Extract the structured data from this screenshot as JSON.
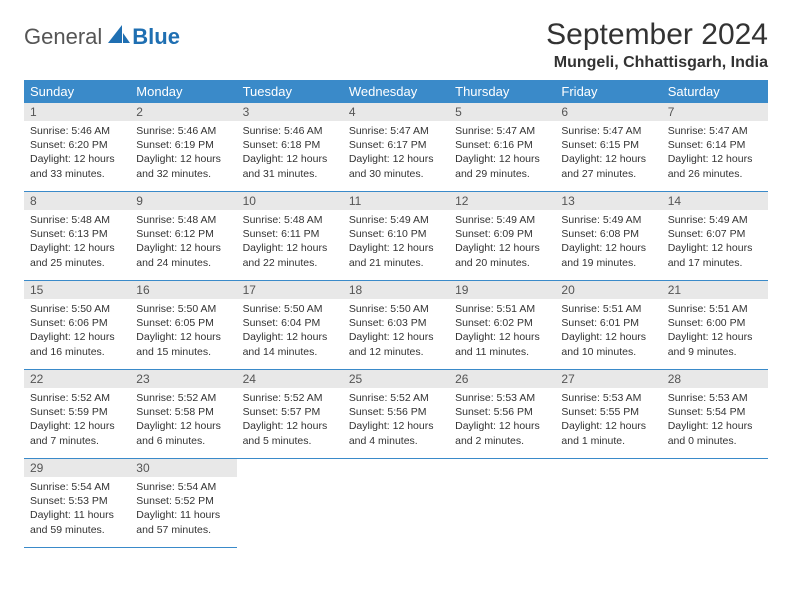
{
  "brand": {
    "word1": "General",
    "word2": "Blue",
    "word2_color": "#1f6fb2",
    "sail_color": "#1f6fb2"
  },
  "title": "September 2024",
  "location": "Mungeli, Chhattisgarh, India",
  "accent_color": "#3a8ac9",
  "day_headers": [
    "Sunday",
    "Monday",
    "Tuesday",
    "Wednesday",
    "Thursday",
    "Friday",
    "Saturday"
  ],
  "weeks": [
    [
      {
        "n": "1",
        "sr": "5:46 AM",
        "ss": "6:20 PM",
        "dl": "12 hours and 33 minutes."
      },
      {
        "n": "2",
        "sr": "5:46 AM",
        "ss": "6:19 PM",
        "dl": "12 hours and 32 minutes."
      },
      {
        "n": "3",
        "sr": "5:46 AM",
        "ss": "6:18 PM",
        "dl": "12 hours and 31 minutes."
      },
      {
        "n": "4",
        "sr": "5:47 AM",
        "ss": "6:17 PM",
        "dl": "12 hours and 30 minutes."
      },
      {
        "n": "5",
        "sr": "5:47 AM",
        "ss": "6:16 PM",
        "dl": "12 hours and 29 minutes."
      },
      {
        "n": "6",
        "sr": "5:47 AM",
        "ss": "6:15 PM",
        "dl": "12 hours and 27 minutes."
      },
      {
        "n": "7",
        "sr": "5:47 AM",
        "ss": "6:14 PM",
        "dl": "12 hours and 26 minutes."
      }
    ],
    [
      {
        "n": "8",
        "sr": "5:48 AM",
        "ss": "6:13 PM",
        "dl": "12 hours and 25 minutes."
      },
      {
        "n": "9",
        "sr": "5:48 AM",
        "ss": "6:12 PM",
        "dl": "12 hours and 24 minutes."
      },
      {
        "n": "10",
        "sr": "5:48 AM",
        "ss": "6:11 PM",
        "dl": "12 hours and 22 minutes."
      },
      {
        "n": "11",
        "sr": "5:49 AM",
        "ss": "6:10 PM",
        "dl": "12 hours and 21 minutes."
      },
      {
        "n": "12",
        "sr": "5:49 AM",
        "ss": "6:09 PM",
        "dl": "12 hours and 20 minutes."
      },
      {
        "n": "13",
        "sr": "5:49 AM",
        "ss": "6:08 PM",
        "dl": "12 hours and 19 minutes."
      },
      {
        "n": "14",
        "sr": "5:49 AM",
        "ss": "6:07 PM",
        "dl": "12 hours and 17 minutes."
      }
    ],
    [
      {
        "n": "15",
        "sr": "5:50 AM",
        "ss": "6:06 PM",
        "dl": "12 hours and 16 minutes."
      },
      {
        "n": "16",
        "sr": "5:50 AM",
        "ss": "6:05 PM",
        "dl": "12 hours and 15 minutes."
      },
      {
        "n": "17",
        "sr": "5:50 AM",
        "ss": "6:04 PM",
        "dl": "12 hours and 14 minutes."
      },
      {
        "n": "18",
        "sr": "5:50 AM",
        "ss": "6:03 PM",
        "dl": "12 hours and 12 minutes."
      },
      {
        "n": "19",
        "sr": "5:51 AM",
        "ss": "6:02 PM",
        "dl": "12 hours and 11 minutes."
      },
      {
        "n": "20",
        "sr": "5:51 AM",
        "ss": "6:01 PM",
        "dl": "12 hours and 10 minutes."
      },
      {
        "n": "21",
        "sr": "5:51 AM",
        "ss": "6:00 PM",
        "dl": "12 hours and 9 minutes."
      }
    ],
    [
      {
        "n": "22",
        "sr": "5:52 AM",
        "ss": "5:59 PM",
        "dl": "12 hours and 7 minutes."
      },
      {
        "n": "23",
        "sr": "5:52 AM",
        "ss": "5:58 PM",
        "dl": "12 hours and 6 minutes."
      },
      {
        "n": "24",
        "sr": "5:52 AM",
        "ss": "5:57 PM",
        "dl": "12 hours and 5 minutes."
      },
      {
        "n": "25",
        "sr": "5:52 AM",
        "ss": "5:56 PM",
        "dl": "12 hours and 4 minutes."
      },
      {
        "n": "26",
        "sr": "5:53 AM",
        "ss": "5:56 PM",
        "dl": "12 hours and 2 minutes."
      },
      {
        "n": "27",
        "sr": "5:53 AM",
        "ss": "5:55 PM",
        "dl": "12 hours and 1 minute."
      },
      {
        "n": "28",
        "sr": "5:53 AM",
        "ss": "5:54 PM",
        "dl": "12 hours and 0 minutes."
      }
    ],
    [
      {
        "n": "29",
        "sr": "5:54 AM",
        "ss": "5:53 PM",
        "dl": "11 hours and 59 minutes."
      },
      {
        "n": "30",
        "sr": "5:54 AM",
        "ss": "5:52 PM",
        "dl": "11 hours and 57 minutes."
      },
      null,
      null,
      null,
      null,
      null
    ]
  ],
  "labels": {
    "sunrise": "Sunrise:",
    "sunset": "Sunset:",
    "daylight": "Daylight:"
  }
}
